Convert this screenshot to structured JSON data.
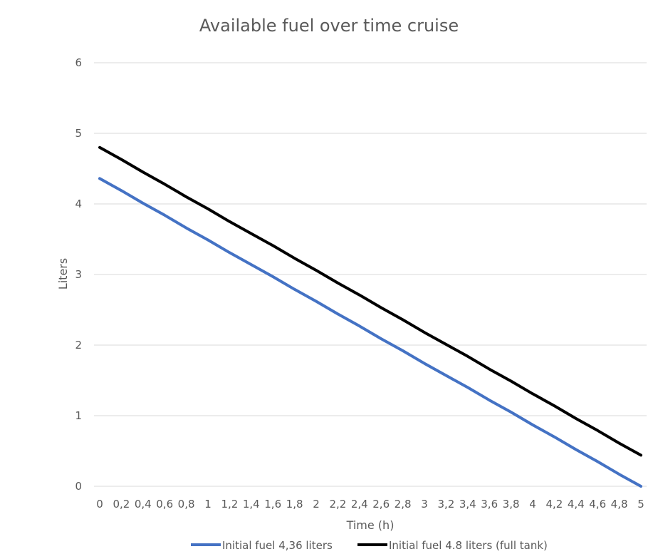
{
  "chart_data": {
    "type": "line",
    "title": "Available fuel over time cruise",
    "xlabel": "Time (h)",
    "ylabel": "Liters",
    "categories": [
      "0",
      "0,2",
      "0,4",
      "0,6",
      "0,8",
      "1",
      "1,2",
      "1,4",
      "1,6",
      "1,8",
      "2",
      "2,2",
      "2,4",
      "2,6",
      "2,8",
      "3",
      "3,2",
      "3,4",
      "3,6",
      "3,8",
      "4",
      "4,2",
      "4,4",
      "4,6",
      "4,8",
      "5"
    ],
    "ylim": [
      0,
      6
    ],
    "yticks": [
      "0",
      "1",
      "2",
      "3",
      "4",
      "5",
      "6"
    ],
    "grid": true,
    "legend_position": "bottom",
    "series": [
      {
        "name": "Initial fuel 4,36 liters",
        "color": "#4472c4",
        "values": [
          4.36,
          4.19,
          4.01,
          3.84,
          3.66,
          3.49,
          3.31,
          3.14,
          2.97,
          2.79,
          2.62,
          2.44,
          2.27,
          2.09,
          1.92,
          1.74,
          1.57,
          1.4,
          1.22,
          1.05,
          0.87,
          0.7,
          0.52,
          0.35,
          0.17,
          0.0
        ]
      },
      {
        "name": "Initial fuel 4.8 liters (full tank)",
        "color": "#000000",
        "values": [
          4.8,
          4.63,
          4.45,
          4.28,
          4.1,
          3.93,
          3.75,
          3.58,
          3.41,
          3.23,
          3.06,
          2.88,
          2.71,
          2.53,
          2.36,
          2.18,
          2.01,
          1.84,
          1.66,
          1.49,
          1.31,
          1.14,
          0.96,
          0.79,
          0.61,
          0.44
        ]
      }
    ]
  }
}
